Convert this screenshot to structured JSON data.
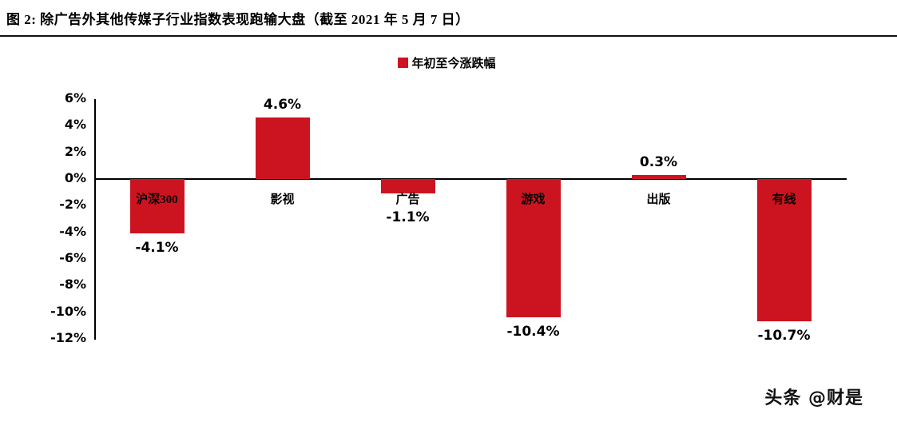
{
  "header": {
    "title": "图 2: 除广告外其他传媒子行业指数表现跑输大盘（截至 2021 年 5 月 7 日）"
  },
  "legend": {
    "label": "年初至今涨跌幅"
  },
  "watermark": "头条 @财是",
  "chart_data": {
    "type": "bar",
    "title": "",
    "legend": [
      "年初至今涨跌幅"
    ],
    "legend_position": "top-center",
    "categories": [
      "沪深300",
      "影视",
      "广告",
      "游戏",
      "出版",
      "有线"
    ],
    "values": [
      -4.1,
      4.6,
      -1.1,
      -10.4,
      0.3,
      -10.7
    ],
    "value_labels": [
      "-4.1%",
      "4.6%",
      "-1.1%",
      "-10.4%",
      "0.3%",
      "-10.7%"
    ],
    "ylabel": "",
    "xlabel": "",
    "ylim": [
      -12,
      6
    ],
    "ytick_values": [
      6,
      4,
      2,
      0,
      -2,
      -4,
      -6,
      -8,
      -10,
      -12
    ],
    "yticks": [
      "6%",
      "4%",
      "2%",
      "0%",
      "-2%",
      "-4%",
      "-6%",
      "-8%",
      "-10%",
      "-12%"
    ],
    "grid": false,
    "bar_color": "#cc1420",
    "axis_color": "#000000"
  }
}
